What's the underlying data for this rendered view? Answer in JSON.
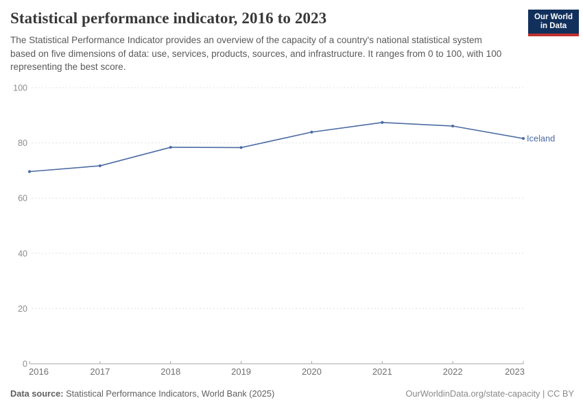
{
  "header": {
    "title": "Statistical performance indicator, 2016 to 2023",
    "subtitle": "The Statistical Performance Indicator provides an overview of the capacity of a country's national statistical system based on five dimensions of data: use, services, products, sources, and infrastructure. It ranges from 0 to 100, with 100 representing the best score."
  },
  "logo": {
    "line1": "Our World",
    "line2": "in Data",
    "bg_color": "#12305c",
    "stripe_color": "#c0312e"
  },
  "chart_data": {
    "type": "line",
    "title": "Statistical performance indicator, 2016 to 2023",
    "x": [
      2016,
      2017,
      2018,
      2019,
      2020,
      2021,
      2022,
      2023
    ],
    "series": [
      {
        "name": "Iceland",
        "color": "#4c6ba3",
        "values": [
          69.6,
          71.7,
          78.4,
          78.3,
          83.9,
          87.4,
          86.1,
          81.6
        ]
      }
    ],
    "end_label": "Iceland",
    "xlabel": "",
    "ylabel": "",
    "ylim": [
      0,
      100
    ],
    "yticks": [
      0,
      20,
      40,
      60,
      80,
      100
    ],
    "grid": "horizontal-dashed",
    "legend_position": "end-of-line-label"
  },
  "colors": {
    "line": "#4c6ba3",
    "gridline": "#e0e0e0",
    "axis_line": "#a6a6a6",
    "ytick_label": "#8b8b8b",
    "xtick_label": "#6f6f6f",
    "end_label": "#4c6ba3"
  },
  "footer": {
    "datasource_label": "Data source:",
    "datasource_text": " Statistical Performance Indicators, World Bank (2025)",
    "link_text": "OurWorldinData.org/state-capacity",
    "separator": " | ",
    "license": "CC BY"
  }
}
